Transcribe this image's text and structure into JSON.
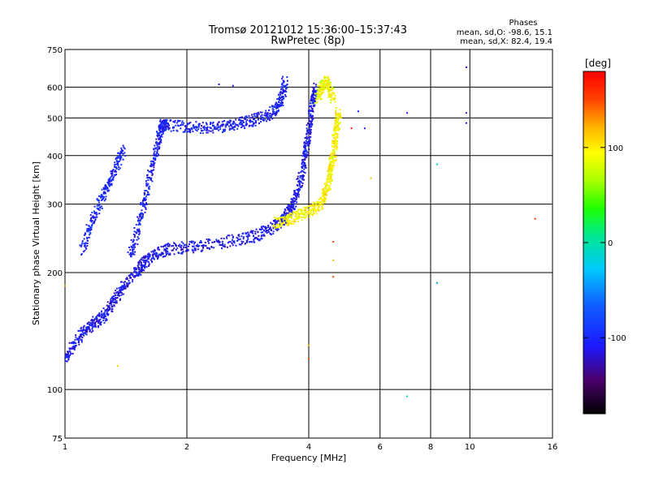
{
  "chart_data": {
    "type": "scatter",
    "title": "Tromsø 20121012 15:36:00–15:37:43",
    "subtitle": "RwPretec (8p)",
    "xlabel": "Frequency [MHz]",
    "ylabel": "Stationary phase Virtual Height [km]",
    "x_scale": "log",
    "y_scale": "log",
    "xlim": [
      1,
      16
    ],
    "ylim": [
      75,
      750
    ],
    "x_ticks": [
      1,
      2,
      4,
      6,
      8,
      10,
      16
    ],
    "y_ticks": [
      75,
      100,
      200,
      300,
      400,
      500,
      600,
      750
    ],
    "grid": true,
    "stats": {
      "title": "Phases",
      "line_o": "mean, sd,O: -98.6, 15.1",
      "line_x": "mean, sd,X:  82.4, 19.4"
    },
    "colorbar": {
      "label": "[deg]",
      "range": [
        -180,
        180
      ],
      "ticks": [
        100,
        0,
        -100
      ]
    },
    "traces": [
      {
        "color_value": -110,
        "note_points": [
          [
            1.0,
            120
          ],
          [
            1.05,
            130
          ],
          [
            1.1,
            140
          ],
          [
            1.15,
            145
          ],
          [
            1.2,
            150
          ],
          [
            1.25,
            155
          ],
          [
            1.3,
            165
          ],
          [
            1.35,
            175
          ],
          [
            1.4,
            185
          ],
          [
            1.5,
            200
          ],
          [
            1.55,
            210
          ],
          [
            1.6,
            215
          ],
          [
            1.7,
            225
          ],
          [
            1.8,
            230
          ],
          [
            2.0,
            232
          ],
          [
            2.2,
            235
          ],
          [
            2.5,
            240
          ],
          [
            2.8,
            245
          ],
          [
            3.0,
            250
          ],
          [
            3.2,
            258
          ],
          [
            3.4,
            268
          ],
          [
            3.5,
            278
          ],
          [
            3.6,
            290
          ],
          [
            3.7,
            310
          ],
          [
            3.8,
            340
          ],
          [
            3.9,
            380
          ],
          [
            3.95,
            420
          ],
          [
            4.0,
            460
          ],
          [
            4.05,
            510
          ],
          [
            4.1,
            560
          ],
          [
            4.15,
            600
          ]
        ]
      },
      {
        "color_value": -105,
        "note_points": [
          [
            1.45,
            220
          ],
          [
            1.5,
            250
          ],
          [
            1.55,
            290
          ],
          [
            1.6,
            330
          ],
          [
            1.65,
            380
          ],
          [
            1.7,
            430
          ],
          [
            1.72,
            470
          ],
          [
            1.75,
            480
          ],
          [
            1.8,
            478
          ],
          [
            2.0,
            475
          ],
          [
            2.2,
            472
          ],
          [
            2.4,
            474
          ],
          [
            2.6,
            480
          ],
          [
            2.8,
            488
          ],
          [
            3.0,
            497
          ],
          [
            3.2,
            510
          ],
          [
            3.35,
            530
          ],
          [
            3.45,
            570
          ],
          [
            3.5,
            630
          ]
        ]
      },
      {
        "color_value": -100,
        "note_points": [
          [
            1.1,
            230
          ],
          [
            1.15,
            260
          ],
          [
            1.2,
            290
          ],
          [
            1.25,
            320
          ],
          [
            1.3,
            350
          ],
          [
            1.35,
            380
          ],
          [
            1.4,
            420
          ]
        ]
      },
      {
        "color_value": 95,
        "note_points": [
          [
            3.3,
            268
          ],
          [
            3.5,
            272
          ],
          [
            3.7,
            278
          ],
          [
            3.9,
            285
          ],
          [
            4.1,
            290
          ],
          [
            4.3,
            300
          ],
          [
            4.4,
            320
          ],
          [
            4.5,
            350
          ],
          [
            4.55,
            380
          ],
          [
            4.6,
            400
          ],
          [
            4.65,
            440
          ],
          [
            4.7,
            480
          ],
          [
            4.75,
            520
          ]
        ]
      },
      {
        "color_value": 90,
        "note_points": [
          [
            4.2,
            560
          ],
          [
            4.3,
            600
          ],
          [
            4.4,
            620
          ],
          [
            4.5,
            600
          ],
          [
            4.6,
            560
          ]
        ]
      }
    ],
    "scattered": [
      {
        "x": 7.0,
        "y": 515,
        "color_value": -110
      },
      {
        "x": 7.0,
        "y": 96,
        "color_value": -10
      },
      {
        "x": 8.3,
        "y": 380,
        "color_value": -20
      },
      {
        "x": 8.3,
        "y": 188,
        "color_value": -40
      },
      {
        "x": 9.8,
        "y": 675,
        "color_value": -115
      },
      {
        "x": 9.8,
        "y": 515,
        "color_value": -110
      },
      {
        "x": 9.8,
        "y": 485,
        "color_value": -110
      },
      {
        "x": 14.5,
        "y": 275,
        "color_value": 160
      },
      {
        "x": 4.6,
        "y": 240,
        "color_value": 150
      },
      {
        "x": 4.6,
        "y": 215,
        "color_value": 120
      },
      {
        "x": 4.6,
        "y": 195,
        "color_value": 150
      },
      {
        "x": 4.0,
        "y": 130,
        "color_value": 120
      },
      {
        "x": 4.0,
        "y": 120,
        "color_value": 150
      },
      {
        "x": 2.4,
        "y": 610,
        "color_value": -110
      },
      {
        "x": 2.6,
        "y": 605,
        "color_value": -110
      },
      {
        "x": 5.3,
        "y": 520,
        "color_value": -110
      },
      {
        "x": 5.1,
        "y": 470,
        "color_value": 170
      },
      {
        "x": 5.5,
        "y": 470,
        "color_value": -110
      },
      {
        "x": 5.7,
        "y": 350,
        "color_value": 120
      },
      {
        "x": 1.0,
        "y": 185,
        "color_value": 120
      },
      {
        "x": 1.35,
        "y": 115,
        "color_value": 110
      }
    ]
  }
}
